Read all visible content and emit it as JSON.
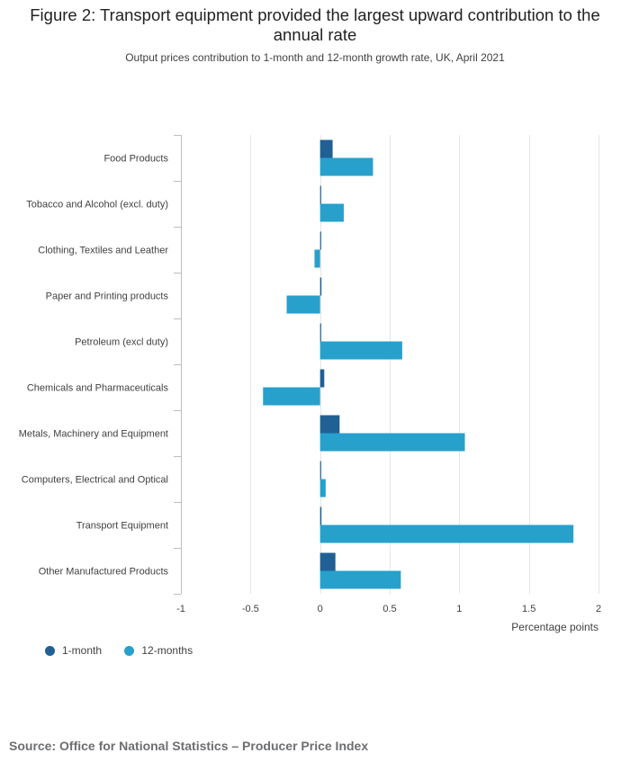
{
  "title": "Figure 2: Transport equipment provided the largest upward contribution to the annual rate",
  "subtitle": "Output prices contribution to 1-month and 12-month growth rate, UK, April 2021",
  "source": "Source: Office for National Statistics – Producer Price Index",
  "colors": {
    "one_month": "#206095",
    "twelve_months": "#27a0cc",
    "grid": "#e6e6e6",
    "axis": "#bebebe",
    "text": "#414042"
  },
  "chart_data": {
    "type": "bar",
    "orientation": "horizontal",
    "title": "Figure 2: Transport equipment provided the largest upward contribution to the annual rate",
    "subtitle": "Output prices contribution to 1-month and 12-month growth rate, UK, April 2021",
    "xlabel": "Percentage points",
    "ylabel": "",
    "xlim": [
      -1,
      2
    ],
    "ticks": [
      -1,
      -0.5,
      0,
      0.5,
      1,
      1.5,
      2
    ],
    "tick_labels": [
      "-1",
      "-0.5",
      "0",
      "0.5",
      "1",
      "1.5",
      "2"
    ],
    "legend_position": "bottom-left",
    "categories": [
      "Food Products",
      "Tobacco and Alcohol (excl. duty)",
      "Clothing, Textiles and Leather",
      "Paper and Printing products",
      "Petroleum (excl duty)",
      "Chemicals and Pharmaceuticals",
      "Metals, Machinery and Equipment",
      "Computers, Electrical and Optical",
      "Transport Equipment",
      "Other Manufactured Products"
    ],
    "series": [
      {
        "name": "1-month",
        "values": [
          0.09,
          0.005,
          0.005,
          0.01,
          0.005,
          0.03,
          0.14,
          0.005,
          0.01,
          0.11
        ]
      },
      {
        "name": "12-months",
        "values": [
          0.38,
          0.17,
          -0.04,
          -0.24,
          0.59,
          -0.41,
          1.04,
          0.04,
          1.82,
          0.58
        ]
      }
    ]
  }
}
